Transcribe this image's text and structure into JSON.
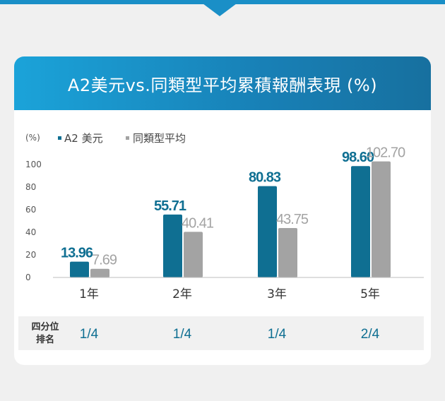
{
  "title": "A2美元vs.同類型平均累積報酬表現 (%)",
  "unit_label": "(%)",
  "colors": {
    "a2": "#0f6f92",
    "peer": "#a3a3a3",
    "header": "#1a8fc7"
  },
  "chart_data": {
    "type": "bar",
    "categories": [
      "1年",
      "2年",
      "3年",
      "5年"
    ],
    "series": [
      {
        "name": "A2 美元",
        "values": [
          13.96,
          55.71,
          80.83,
          98.6
        ],
        "labels": [
          "13.96",
          "55.71",
          "80.83",
          "98.60"
        ]
      },
      {
        "name": "同類型平均",
        "values": [
          7.69,
          40.41,
          43.75,
          102.7
        ],
        "labels": [
          "7.69",
          "40.41",
          "43.75",
          "102.70"
        ]
      }
    ],
    "yticks": [
      "0",
      "20",
      "40",
      "60",
      "80",
      "100"
    ],
    "ylim": [
      0,
      100
    ],
    "legend": "top-left"
  },
  "quartile": {
    "label_line1": "四分位",
    "label_line2": "排名",
    "values": [
      "1/4",
      "1/4",
      "1/4",
      "2/4"
    ]
  }
}
